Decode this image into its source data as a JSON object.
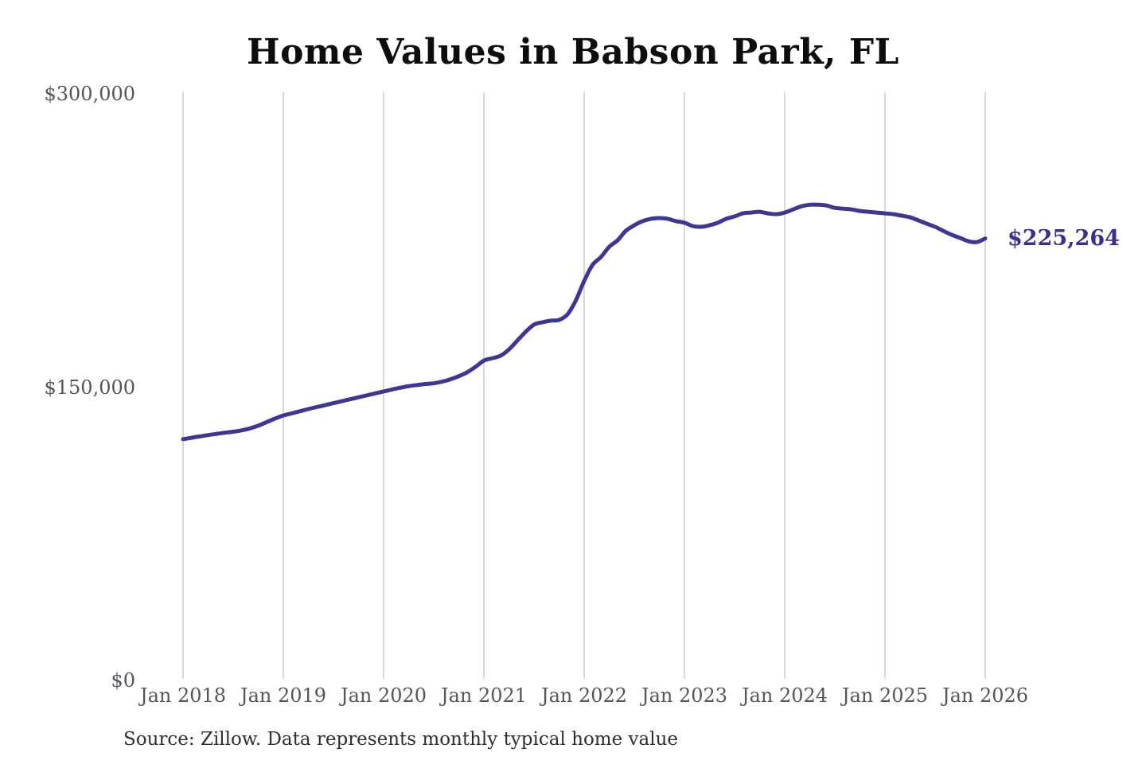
{
  "title": "Home Values in Babson Park, FL",
  "source_note": "Source: Zillow. Data represents monthly typical home value",
  "end_value_label": "$225,264",
  "colors": {
    "line": "#3e3693",
    "end_label": "#37308f",
    "grid": "#cccccc",
    "tick_text": "#54565c",
    "title_text": "#0d0d0d",
    "source_text": "#2f2f2f",
    "background": "#ffffff"
  },
  "y_axis": {
    "labels": [
      "$300,000",
      "$150,000",
      "$0"
    ],
    "values": [
      300000,
      150000,
      0
    ]
  },
  "x_axis": {
    "labels": [
      "Jan 2018",
      "Jan 2019",
      "Jan 2020",
      "Jan 2021",
      "Jan 2022",
      "Jan 2023",
      "Jan 2024",
      "Jan 2025",
      "Jan 2026"
    ]
  },
  "chart_data": {
    "type": "line",
    "title": "Home Values in Babson Park, FL",
    "xlabel": "",
    "ylabel": "",
    "unit": "USD",
    "x_start": "2018-01",
    "x_interval": "month",
    "x_end": "2026-01",
    "ylim": [
      0,
      300000
    ],
    "yticks": [
      0,
      150000,
      300000
    ],
    "grid": "vertical-only",
    "legend": "none",
    "final_value": 225264,
    "values": [
      122600,
      123300,
      124000,
      124700,
      125300,
      125900,
      126400,
      127100,
      128100,
      129500,
      131300,
      133100,
      134700,
      135800,
      136900,
      138000,
      139000,
      140000,
      141000,
      142000,
      143000,
      144000,
      145000,
      146000,
      147000,
      148000,
      148900,
      149700,
      150300,
      150800,
      151200,
      152000,
      153200,
      154800,
      156800,
      159600,
      162800,
      164000,
      165300,
      168500,
      173000,
      177500,
      181200,
      182400,
      183200,
      183600,
      186400,
      193500,
      203500,
      211700,
      215700,
      221000,
      224300,
      229200,
      232000,
      234100,
      235300,
      235700,
      235300,
      234100,
      233300,
      231600,
      231200,
      232000,
      233300,
      235300,
      236500,
      238100,
      238500,
      238900,
      238100,
      237700,
      238500,
      240100,
      241700,
      242500,
      242500,
      242100,
      240900,
      240500,
      240100,
      239300,
      238900,
      238500,
      238100,
      237700,
      236900,
      236100,
      234500,
      232800,
      231200,
      229100,
      227100,
      225500,
      223800,
      223400,
      225264
    ]
  }
}
